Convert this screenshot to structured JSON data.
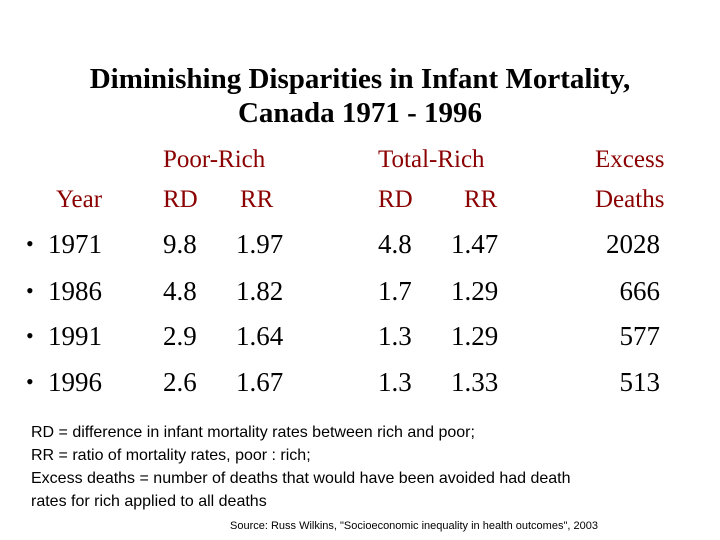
{
  "title": {
    "line1": "Diminishing Disparities in Infant Mortality,",
    "line2": "Canada 1971 - 1996"
  },
  "headers": {
    "year": "Year",
    "poor_rich": "Poor-Rich",
    "total_rich": "Total-Rich",
    "excess_line1": "Excess",
    "excess_line2": "Deaths",
    "rd": "RD",
    "rr": "RR"
  },
  "bullet": "•",
  "rows": [
    {
      "year": "1971",
      "pr_rd": "9.8",
      "pr_rr": "1.97",
      "tr_rd": "4.8",
      "tr_rr": "1.47",
      "excess": "2028"
    },
    {
      "year": "1986",
      "pr_rd": "4.8",
      "pr_rr": "1.82",
      "tr_rd": "1.7",
      "tr_rr": "1.29",
      "excess": "666"
    },
    {
      "year": "1991",
      "pr_rd": "2.9",
      "pr_rr": "1.64",
      "tr_rd": "1.3",
      "tr_rr": "1.29",
      "excess": "577"
    },
    {
      "year": "1996",
      "pr_rd": "2.6",
      "pr_rr": "1.67",
      "tr_rd": "1.3",
      "tr_rr": "1.33",
      "excess": "513"
    }
  ],
  "notes": [
    "RD = difference in infant mortality rates between rich and poor;",
    "RR = ratio of mortality rates, poor : rich;",
    "Excess deaths = number of deaths that would have been avoided had death",
    "rates for rich applied to all deaths"
  ],
  "source": "Source: Russ Wilkins, \"Socioeconomic inequality in health outcomes\", 2003"
}
